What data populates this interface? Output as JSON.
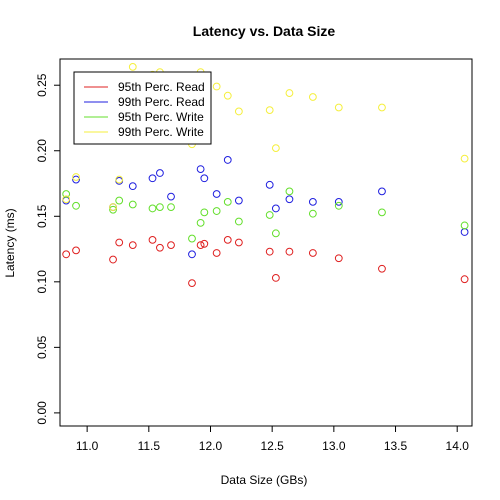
{
  "chart_data": {
    "type": "scatter",
    "title": "Latency vs. Data Size",
    "xlabel": "Data Size (GBs)",
    "ylabel": "Latency (ms)",
    "xlim": [
      10.78,
      14.12
    ],
    "ylim": [
      -0.01,
      0.27
    ],
    "x_ticks": [
      11.0,
      11.5,
      12.0,
      12.5,
      13.0,
      13.5,
      14.0
    ],
    "x_tick_labels": [
      "11.0",
      "11.5",
      "12.0",
      "12.5",
      "13.0",
      "13.5",
      "14.0"
    ],
    "y_ticks": [
      0.0,
      0.05,
      0.1,
      0.15,
      0.2,
      0.25
    ],
    "y_tick_labels": [
      "0.00",
      "0.05",
      "0.10",
      "0.15",
      "0.20",
      "0.25"
    ],
    "grid": false,
    "legend_position": "top-left",
    "series": [
      {
        "name": "95th Perc. Read",
        "color": "#df2020",
        "x": [
          10.83,
          10.91,
          11.21,
          11.26,
          11.37,
          11.53,
          11.59,
          11.68,
          11.85,
          11.92,
          11.95,
          12.05,
          12.14,
          12.23,
          12.48,
          12.53,
          12.64,
          12.83,
          13.04,
          13.39,
          14.06
        ],
        "y": [
          0.121,
          0.124,
          0.117,
          0.13,
          0.128,
          0.132,
          0.126,
          0.128,
          0.099,
          0.128,
          0.129,
          0.122,
          0.132,
          0.13,
          0.123,
          0.103,
          0.123,
          0.122,
          0.118,
          0.11,
          0.102
        ]
      },
      {
        "name": "99th Perc. Read",
        "color": "#1f1fdf",
        "x": [
          10.83,
          10.91,
          11.21,
          11.26,
          11.37,
          11.53,
          11.59,
          11.68,
          11.85,
          11.92,
          11.95,
          12.05,
          12.14,
          12.23,
          12.48,
          12.53,
          12.64,
          12.83,
          13.04,
          13.39,
          14.06
        ],
        "y": [
          0.162,
          0.178,
          0.157,
          0.177,
          0.173,
          0.179,
          0.183,
          0.165,
          0.121,
          0.186,
          0.179,
          0.167,
          0.193,
          0.162,
          0.174,
          0.156,
          0.163,
          0.161,
          0.161,
          0.169,
          0.138
        ]
      },
      {
        "name": "95th Perc. Write",
        "color": "#63df2b",
        "x": [
          10.83,
          10.91,
          11.21,
          11.26,
          11.37,
          11.53,
          11.59,
          11.68,
          11.85,
          11.92,
          11.95,
          12.05,
          12.14,
          12.23,
          12.48,
          12.53,
          12.64,
          12.83,
          13.04,
          13.39,
          14.06
        ],
        "y": [
          0.167,
          0.158,
          0.155,
          0.162,
          0.159,
          0.156,
          0.157,
          0.157,
          0.133,
          0.145,
          0.153,
          0.154,
          0.161,
          0.146,
          0.151,
          0.137,
          0.169,
          0.152,
          0.158,
          0.153,
          0.143
        ]
      },
      {
        "name": "99th Perc. Write",
        "color": "#f5ef3d",
        "x": [
          10.83,
          10.91,
          11.21,
          11.26,
          11.37,
          11.53,
          11.59,
          11.68,
          11.85,
          11.92,
          11.95,
          12.05,
          12.14,
          12.23,
          12.48,
          12.53,
          12.64,
          12.83,
          13.04,
          13.39,
          14.06
        ],
        "y": [
          0.163,
          0.18,
          0.157,
          0.178,
          0.264,
          0.258,
          0.26,
          0.255,
          0.205,
          0.26,
          0.255,
          0.249,
          0.242,
          0.23,
          0.231,
          0.202,
          0.244,
          0.241,
          0.233,
          0.233,
          0.194
        ]
      }
    ]
  }
}
